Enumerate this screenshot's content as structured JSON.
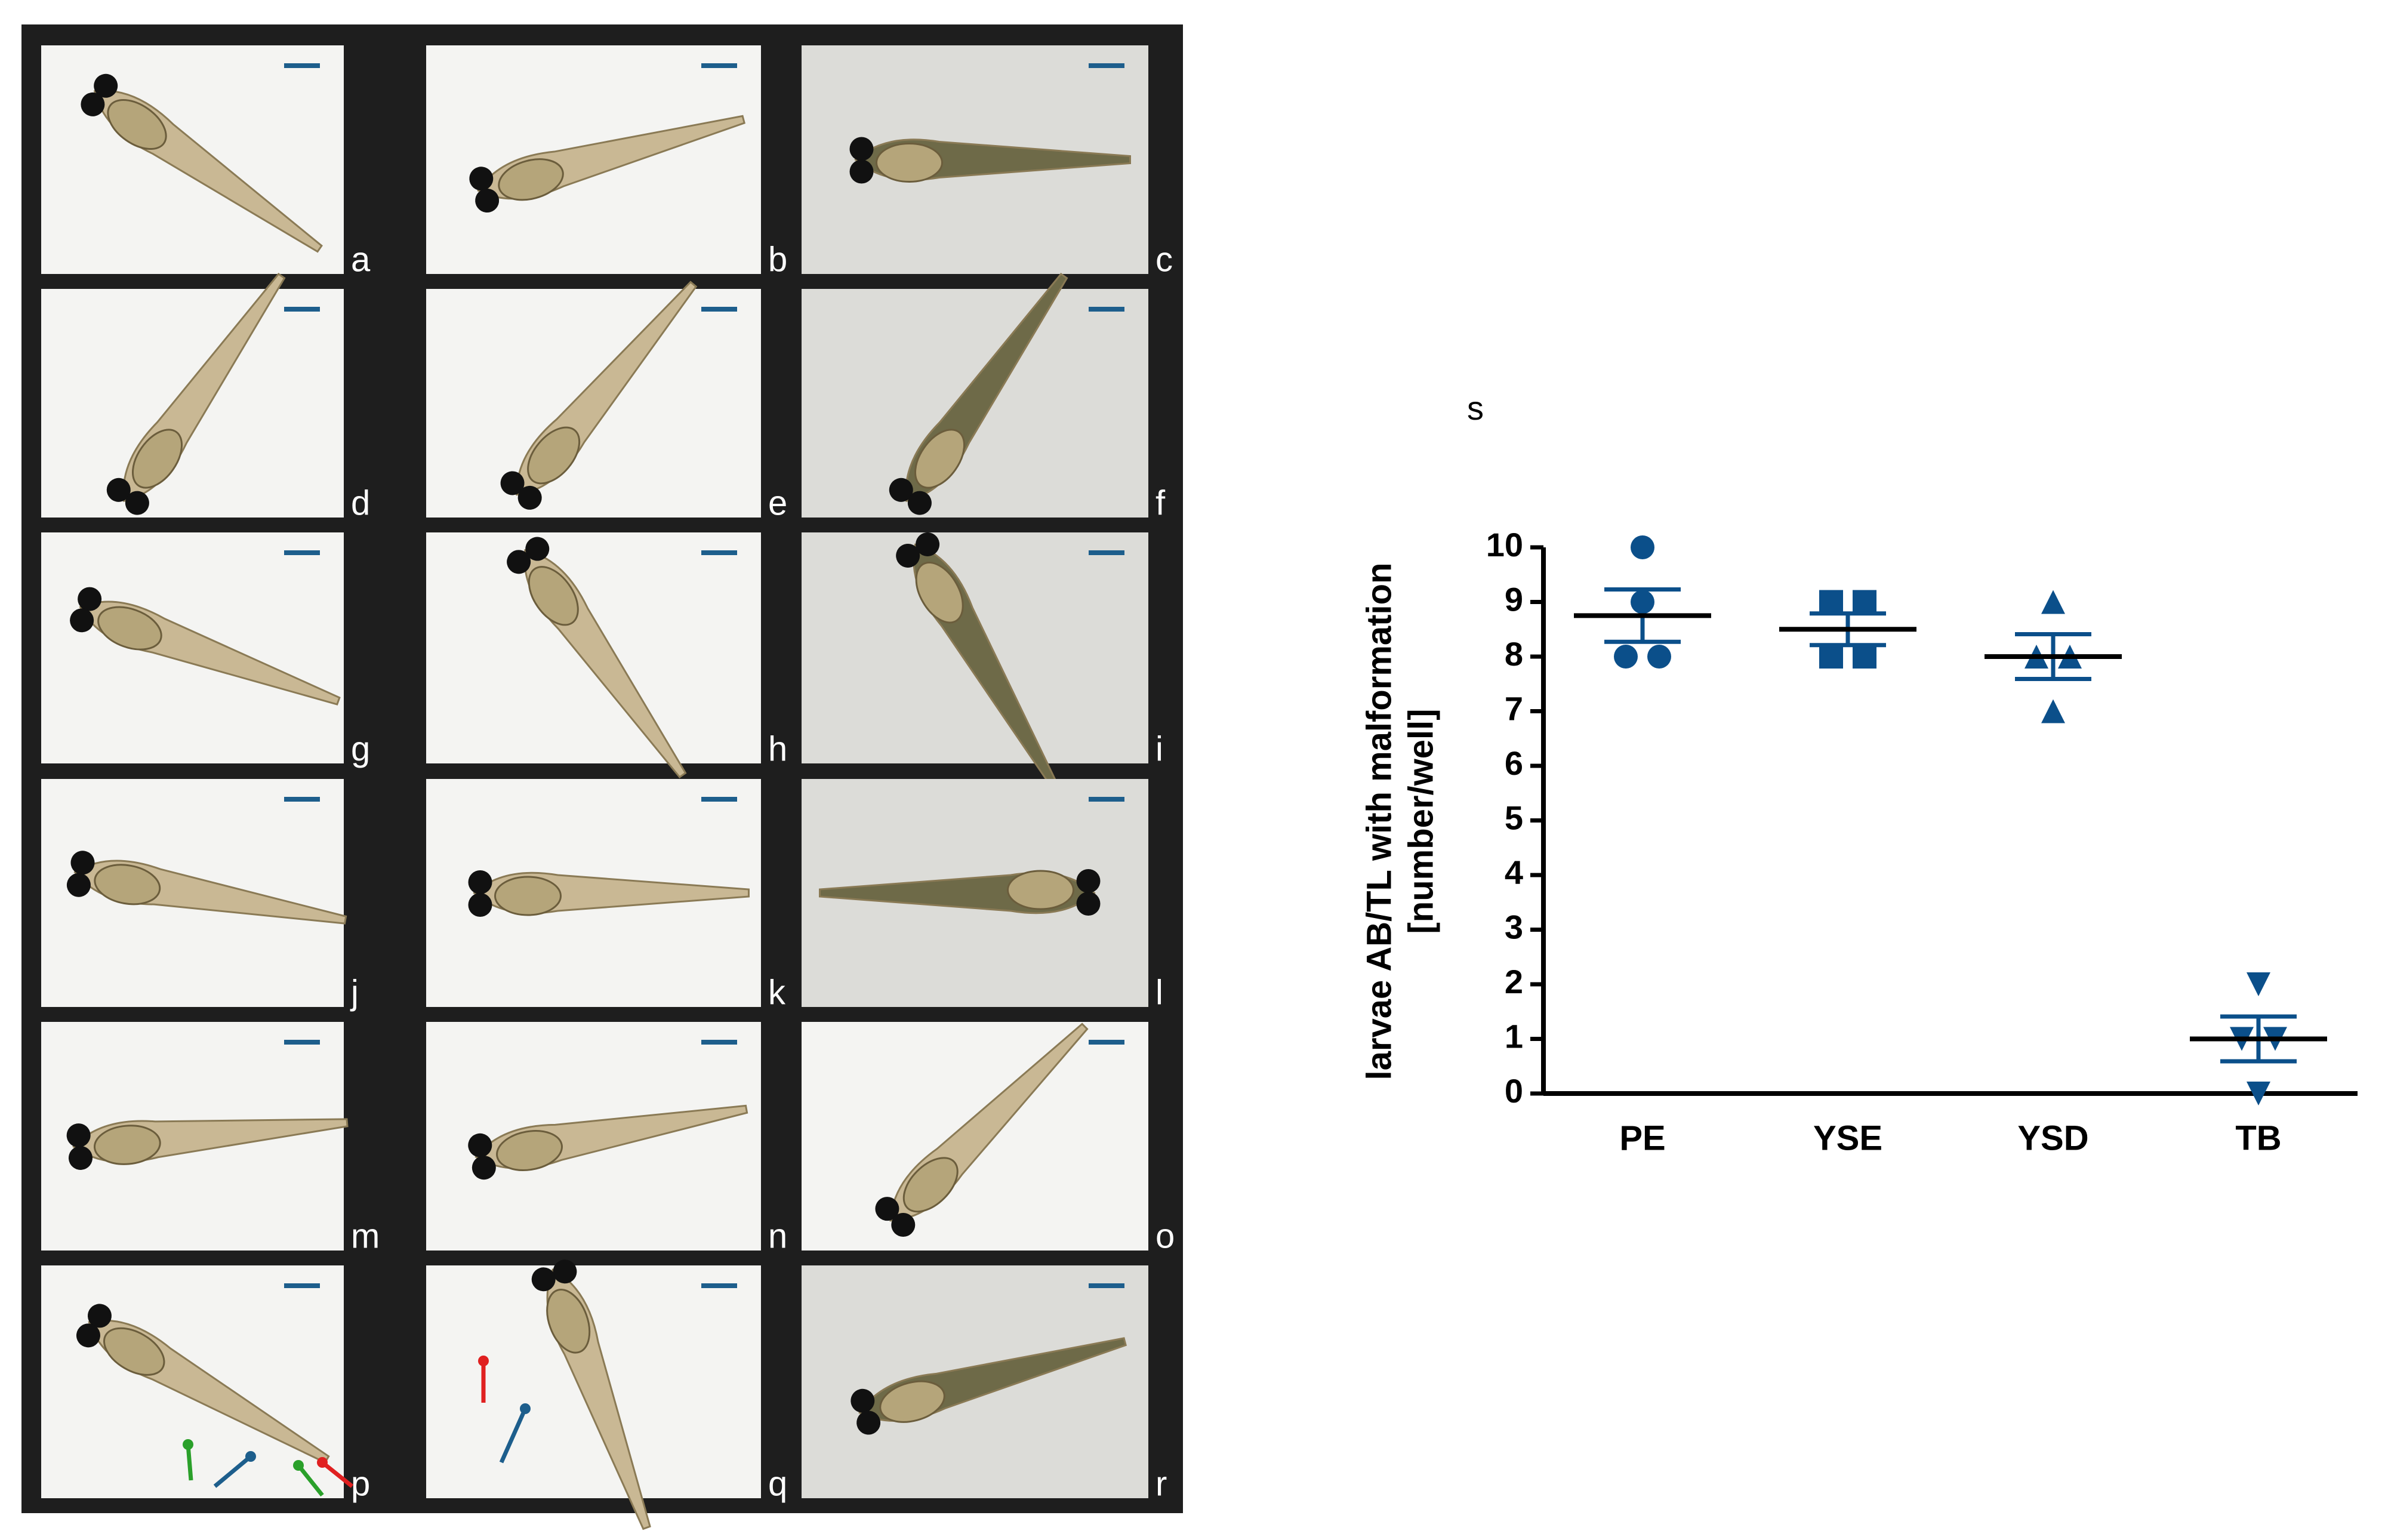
{
  "panels": [
    "a",
    "b",
    "c",
    "d",
    "e",
    "f",
    "g",
    "h",
    "i",
    "j",
    "k",
    "l",
    "m",
    "n",
    "o",
    "p",
    "q",
    "r"
  ],
  "chart_data": {
    "type": "dotplot",
    "panel_label": "s",
    "y_label": [
      "larvae AB/TL with malformation",
      "[number/well]"
    ],
    "categories": [
      "PE",
      "YSE",
      "YSD",
      "TB"
    ],
    "groups": [
      {
        "values": [
          10,
          9,
          8,
          8
        ],
        "mean": 8.75,
        "sem": 0.48,
        "marker": "circle",
        "color": "#0b4f8a"
      },
      {
        "values": [
          9,
          9,
          8,
          8
        ],
        "mean": 8.5,
        "sem": 0.29,
        "marker": "square",
        "color": "#0b4f8a"
      },
      {
        "values": [
          9,
          8,
          8,
          7
        ],
        "mean": 8,
        "sem": 0.41,
        "marker": "triangle",
        "color": "#0b4f8a"
      },
      {
        "values": [
          2,
          1,
          1,
          0
        ],
        "mean": 1,
        "sem": 0.41,
        "marker": "triangle-down",
        "color": "#0b4f8a"
      }
    ],
    "mean_color": "#000000",
    "ylim": [
      0,
      10
    ],
    "yticks": [
      0,
      1,
      2,
      3,
      4,
      5,
      6,
      7,
      8,
      9,
      10
    ]
  }
}
